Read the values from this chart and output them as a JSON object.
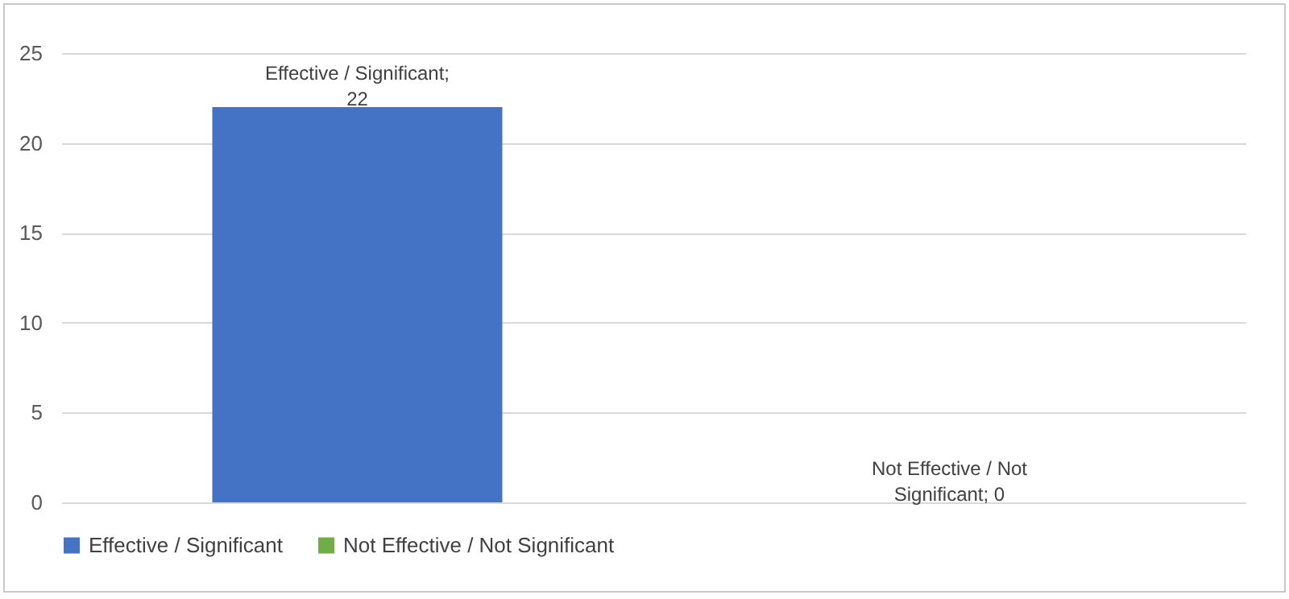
{
  "chart_data": {
    "type": "bar",
    "categories": [
      null,
      null
    ],
    "series": [
      {
        "name": "Effective / Significant",
        "color": "#4472c4",
        "values": [
          22,
          null
        ],
        "value_labels": [
          "Effective / Significant; 22",
          null
        ]
      },
      {
        "name": "Not Effective / Not Significant",
        "color": "#70ad47",
        "values": [
          null,
          0
        ],
        "value_labels": [
          null,
          "Not Effective / Not Significant; 0"
        ]
      }
    ],
    "ylim": [
      0,
      25
    ],
    "yticks": [
      0,
      5,
      10,
      15,
      20,
      25
    ],
    "grid": "y",
    "legend": "bottom"
  }
}
